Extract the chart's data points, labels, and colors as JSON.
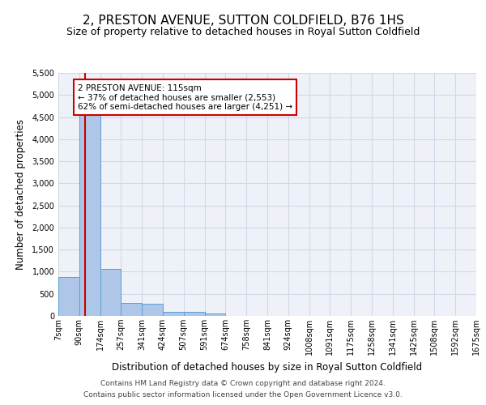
{
  "title": "2, PRESTON AVENUE, SUTTON COLDFIELD, B76 1HS",
  "subtitle": "Size of property relative to detached houses in Royal Sutton Coldfield",
  "xlabel": "Distribution of detached houses by size in Royal Sutton Coldfield",
  "ylabel": "Number of detached properties",
  "footer_line1": "Contains HM Land Registry data © Crown copyright and database right 2024.",
  "footer_line2": "Contains public sector information licensed under the Open Government Licence v3.0.",
  "annotation_title": "2 PRESTON AVENUE: 115sqm",
  "annotation_line2": "← 37% of detached houses are smaller (2,553)",
  "annotation_line3": "62% of semi-detached houses are larger (4,251) →",
  "property_size": 115,
  "bar_edges": [
    7,
    90,
    174,
    257,
    341,
    424,
    507,
    591,
    674,
    758,
    841,
    924,
    1008,
    1091,
    1175,
    1258,
    1341,
    1425,
    1508,
    1592,
    1675
  ],
  "bar_heights": [
    880,
    4560,
    1060,
    290,
    280,
    95,
    85,
    55,
    0,
    0,
    0,
    0,
    0,
    0,
    0,
    0,
    0,
    0,
    0,
    0
  ],
  "bar_color": "#aec6e8",
  "bar_edge_color": "#5a9fd4",
  "vline_color": "#cc0000",
  "vline_x": 115,
  "annotation_box_color": "#cc0000",
  "ylim": [
    0,
    5500
  ],
  "yticks": [
    0,
    500,
    1000,
    1500,
    2000,
    2500,
    3000,
    3500,
    4000,
    4500,
    5000,
    5500
  ],
  "grid_color": "#d0d8e8",
  "bg_color": "#eef2f8",
  "title_fontsize": 11,
  "subtitle_fontsize": 9,
  "xlabel_fontsize": 8.5,
  "ylabel_fontsize": 8.5,
  "tick_fontsize": 7,
  "annotation_fontsize": 7.5,
  "footer_fontsize": 6.5
}
